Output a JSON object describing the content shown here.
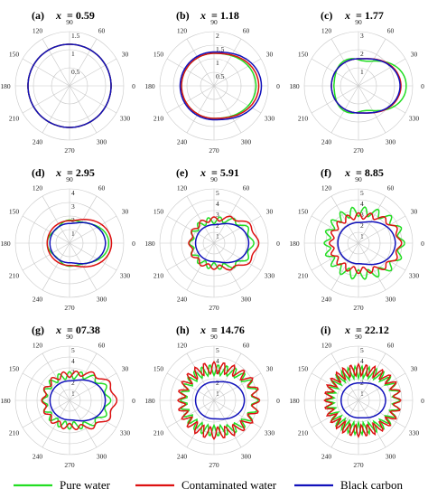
{
  "colors": {
    "pure_water": "#22dd22",
    "contaminated_water": "#dd1111",
    "black_carbon": "#1111bb",
    "grid": "#c8c8c8"
  },
  "legend": [
    {
      "label": "Pure water",
      "color": "#22dd22"
    },
    {
      "label": "Contaminated water",
      "color": "#dd1111"
    },
    {
      "label": "Black carbon",
      "color": "#1111bb"
    }
  ],
  "chart_data": [
    {
      "type": "polar",
      "panel": "(a)",
      "x_var": "x",
      "x_value": "= 0.59",
      "rlim": [
        0,
        1.5
      ],
      "rticks": [
        "0.5",
        "1",
        "1.5"
      ],
      "angle_ticks": [
        "0",
        "30",
        "60",
        "90",
        "120",
        "150",
        "180",
        "210",
        "240",
        "270",
        "300",
        "330"
      ],
      "series": [
        {
          "name": "Pure water",
          "base": 1.15,
          "fwd": 0.0,
          "lobes": 0,
          "amp": 0.0
        },
        {
          "name": "Contaminated water",
          "base": 1.15,
          "fwd": 0.0,
          "lobes": 0,
          "amp": 0.0
        },
        {
          "name": "Black carbon",
          "base": 1.15,
          "fwd": 0.0,
          "lobes": 0,
          "amp": 0.0
        }
      ]
    },
    {
      "type": "polar",
      "panel": "(b)",
      "x_var": "x",
      "x_value": "= 1.18",
      "rlim": [
        0,
        2
      ],
      "rticks": [
        "0.5",
        "1",
        "1.5",
        "2"
      ],
      "angle_ticks": [
        "0",
        "30",
        "60",
        "90",
        "120",
        "150",
        "180",
        "210",
        "240",
        "270",
        "300",
        "330"
      ],
      "series": [
        {
          "name": "Pure water",
          "base": 1.2,
          "fwd": 0.35,
          "lobes": 0,
          "amp": 0.0
        },
        {
          "name": "Contaminated water",
          "base": 1.2,
          "fwd": 0.45,
          "lobes": 0,
          "amp": 0.0
        },
        {
          "name": "Black carbon",
          "base": 1.25,
          "fwd": 0.5,
          "lobes": 0,
          "amp": 0.0
        }
      ]
    },
    {
      "type": "polar",
      "panel": "(c)",
      "x_var": "x",
      "x_value": "= 1.77",
      "rlim": [
        0,
        3
      ],
      "rticks": [
        "1",
        "2",
        "3"
      ],
      "angle_ticks": [
        "0",
        "30",
        "60",
        "90",
        "120",
        "150",
        "180",
        "210",
        "240",
        "270",
        "300",
        "330"
      ],
      "series": [
        {
          "name": "Pure water",
          "base": 1.45,
          "fwd": 1.1,
          "lobes": 3,
          "amp": 0.15
        },
        {
          "name": "Contaminated water",
          "base": 1.5,
          "fwd": 0.85,
          "lobes": 0,
          "amp": 0.0
        },
        {
          "name": "Black carbon",
          "base": 1.5,
          "fwd": 0.8,
          "lobes": 0,
          "amp": 0.0
        }
      ]
    },
    {
      "type": "polar",
      "panel": "(d)",
      "x_var": "x",
      "x_value": "= 2.95",
      "rlim": [
        0,
        4
      ],
      "rticks": [
        "1",
        "2",
        "3",
        "4"
      ],
      "angle_ticks": [
        "0",
        "30",
        "60",
        "90",
        "120",
        "150",
        "180",
        "210",
        "240",
        "270",
        "300",
        "330"
      ],
      "series": [
        {
          "name": "Pure water",
          "base": 1.55,
          "fwd": 1.25,
          "lobes": 4,
          "amp": 0.15
        },
        {
          "name": "Contaminated water",
          "base": 1.65,
          "fwd": 1.45,
          "lobes": 0,
          "amp": 0.0
        },
        {
          "name": "Black carbon",
          "base": 1.45,
          "fwd": 1.2,
          "lobes": 0,
          "amp": 0.0
        }
      ]
    },
    {
      "type": "polar",
      "panel": "(e)",
      "x_var": "x",
      "x_value": "= 5.91",
      "rlim": [
        0,
        5
      ],
      "rticks": [
        "1",
        "2",
        "3",
        "4",
        "5"
      ],
      "angle_ticks": [
        "0",
        "30",
        "60",
        "90",
        "120",
        "150",
        "180",
        "210",
        "240",
        "270",
        "300",
        "330"
      ],
      "series": [
        {
          "name": "Pure water",
          "base": 2.1,
          "fwd": 1.4,
          "lobes": 14,
          "amp": 0.3
        },
        {
          "name": "Contaminated water",
          "base": 2.2,
          "fwd": 1.8,
          "lobes": 12,
          "amp": 0.22
        },
        {
          "name": "Black carbon",
          "base": 1.7,
          "fwd": 1.5,
          "lobes": 0,
          "amp": 0.0
        }
      ]
    },
    {
      "type": "polar",
      "panel": "(f)",
      "x_var": "x",
      "x_value": "= 8.85",
      "rlim": [
        0,
        5
      ],
      "rticks": [
        "1",
        "2",
        "3",
        "4",
        "5"
      ],
      "angle_ticks": [
        "0",
        "30",
        "60",
        "90",
        "120",
        "150",
        "180",
        "210",
        "240",
        "270",
        "300",
        "330"
      ],
      "series": [
        {
          "name": "Pure water",
          "base": 2.9,
          "fwd": 1.1,
          "lobes": 18,
          "amp": 0.45
        },
        {
          "name": "Contaminated water",
          "base": 2.5,
          "fwd": 1.3,
          "lobes": 16,
          "amp": 0.3
        },
        {
          "name": "Black carbon",
          "base": 1.9,
          "fwd": 1.5,
          "lobes": 0,
          "amp": 0.0
        }
      ]
    },
    {
      "type": "polar",
      "panel": "(g)",
      "x_var": "x",
      "x_value": "= 07.38",
      "rlim": [
        0,
        5
      ],
      "rticks": [
        "1",
        "2",
        "3",
        "4",
        "5"
      ],
      "angle_ticks": [
        "0",
        "30",
        "60",
        "90",
        "120",
        "150",
        "180",
        "210",
        "240",
        "270",
        "300",
        "330"
      ],
      "series": [
        {
          "name": "Pure water",
          "base": 2.3,
          "fwd": 1.3,
          "lobes": 16,
          "amp": 0.35
        },
        {
          "name": "Contaminated water",
          "base": 2.4,
          "fwd": 1.8,
          "lobes": 14,
          "amp": 0.28
        },
        {
          "name": "Black carbon",
          "base": 1.8,
          "fwd": 1.5,
          "lobes": 0,
          "amp": 0.0
        }
      ]
    },
    {
      "type": "polar",
      "panel": "(h)",
      "x_var": "x",
      "x_value": "= 14.76",
      "rlim": [
        0,
        5
      ],
      "rticks": [
        "1",
        "2",
        "3",
        "4",
        "5"
      ],
      "angle_ticks": [
        "0",
        "30",
        "60",
        "90",
        "120",
        "150",
        "180",
        "210",
        "240",
        "270",
        "300",
        "330"
      ],
      "series": [
        {
          "name": "Pure water",
          "base": 2.8,
          "fwd": 1.0,
          "lobes": 26,
          "amp": 0.5
        },
        {
          "name": "Contaminated water",
          "base": 3.0,
          "fwd": 0.9,
          "lobes": 24,
          "amp": 0.55
        },
        {
          "name": "Black carbon",
          "base": 1.7,
          "fwd": 1.1,
          "lobes": 0,
          "amp": 0.0
        }
      ]
    },
    {
      "type": "polar",
      "panel": "(i)",
      "x_var": "x",
      "x_value": "= 22.12",
      "rlim": [
        0,
        5
      ],
      "rticks": [
        "1",
        "2",
        "3",
        "4",
        "5"
      ],
      "angle_ticks": [
        "0",
        "30",
        "60",
        "90",
        "120",
        "150",
        "180",
        "210",
        "240",
        "270",
        "300",
        "330"
      ],
      "series": [
        {
          "name": "Pure water",
          "base": 2.6,
          "fwd": 0.9,
          "lobes": 30,
          "amp": 0.55
        },
        {
          "name": "Contaminated water",
          "base": 2.8,
          "fwd": 0.8,
          "lobes": 28,
          "amp": 0.55
        },
        {
          "name": "Black carbon",
          "base": 1.6,
          "fwd": 0.9,
          "lobes": 0,
          "amp": 0.0
        }
      ]
    }
  ]
}
